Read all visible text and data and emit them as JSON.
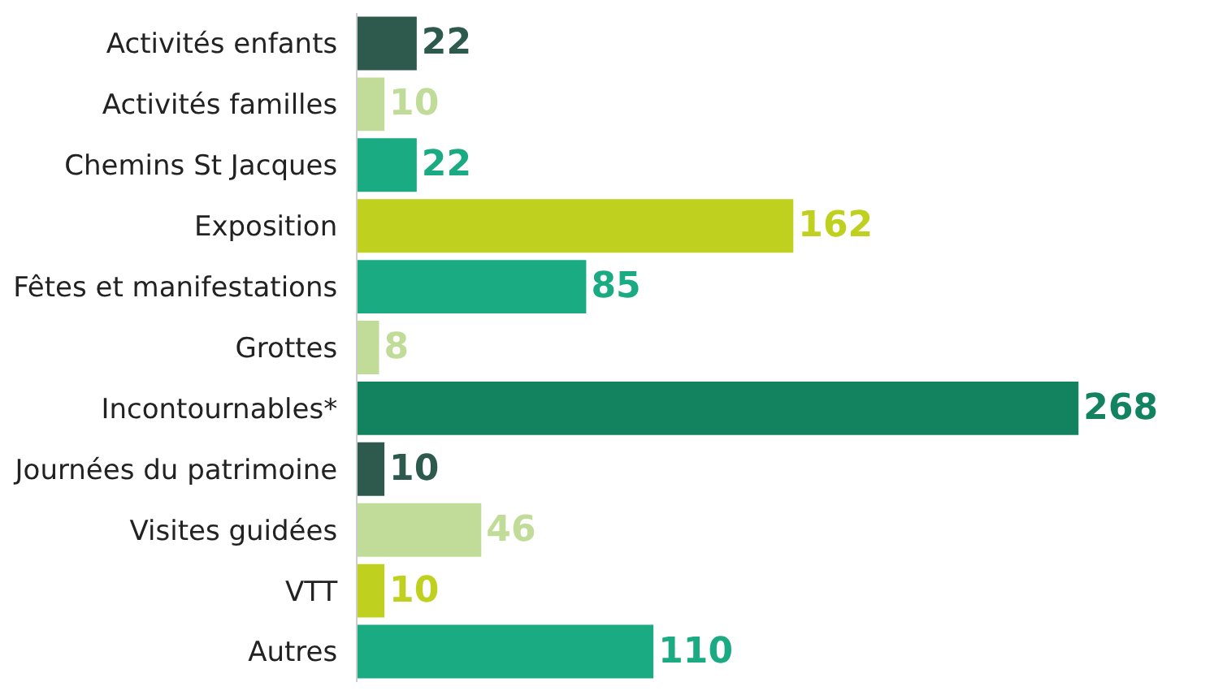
{
  "chart_data": {
    "type": "bar",
    "orientation": "horizontal",
    "data_labels": true,
    "categories": [
      "Activités enfants",
      "Activités familles",
      "Chemins St Jacques",
      "Exposition",
      "Fêtes et manifestations",
      "Grottes",
      "Incontournables*",
      "Journées du patrimoine",
      "Visites guidées",
      "VTT",
      "Autres"
    ],
    "values": [
      22,
      10,
      22,
      162,
      85,
      8,
      268,
      10,
      46,
      10,
      110
    ],
    "colors": [
      "#2d5a4c",
      "#c0dc98",
      "#1bab82",
      "#bfd11e",
      "#1bab82",
      "#c0dc98",
      "#13825f",
      "#2d5a4c",
      "#c0dc98",
      "#bfd11e",
      "#1bab82"
    ]
  }
}
